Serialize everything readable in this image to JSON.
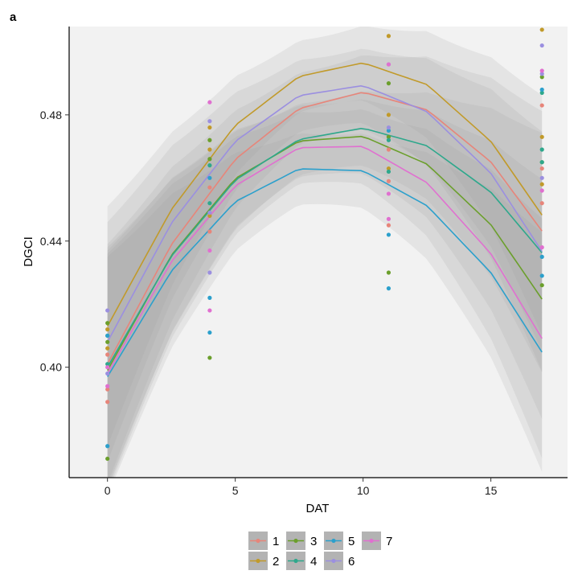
{
  "panel_tag": "a",
  "chart_data": {
    "type": "scatter",
    "xlabel": "DAT",
    "ylabel": "DGCI",
    "xlim": [
      -1.5,
      18.0
    ],
    "ylim": [
      0.365,
      0.508
    ],
    "x_ticks": [
      0,
      5,
      10,
      15
    ],
    "y_ticks": [
      0.4,
      0.44,
      0.48
    ],
    "y_tick_labels": [
      "0.40",
      "0.44",
      "0.48"
    ],
    "background": "#f2f2f2",
    "fits": "quadratic smooth with confidence band",
    "legend_position": "bottom",
    "series": [
      {
        "name": "1",
        "color": "#e7857a",
        "points": [
          [
            0,
            0.389
          ],
          [
            0,
            0.393
          ],
          [
            0,
            0.404
          ],
          [
            4,
            0.457
          ],
          [
            4,
            0.443
          ],
          [
            11,
            0.459
          ],
          [
            11,
            0.469
          ],
          [
            11,
            0.445
          ],
          [
            17,
            0.452
          ],
          [
            17,
            0.463
          ],
          [
            17,
            0.483
          ]
        ],
        "fit": [
          0.401,
          0.4389,
          0.4659,
          0.482,
          0.4872,
          0.4816,
          0.4651,
          0.4377
        ]
      },
      {
        "name": "2",
        "color": "#c19a2a",
        "points": [
          [
            0,
            0.406
          ],
          [
            0,
            0.412
          ],
          [
            4,
            0.469
          ],
          [
            4,
            0.476
          ],
          [
            4,
            0.448
          ],
          [
            11,
            0.505
          ],
          [
            11,
            0.48
          ],
          [
            11,
            0.463
          ],
          [
            17,
            0.507
          ],
          [
            17,
            0.473
          ],
          [
            17,
            0.458
          ]
        ],
        "fit": [
          0.413,
          0.45,
          0.4767,
          0.4922,
          0.4965,
          0.4896,
          0.4716,
          0.4424
        ]
      },
      {
        "name": "3",
        "color": "#6b9f2c",
        "points": [
          [
            0,
            0.371
          ],
          [
            0,
            0.414
          ],
          [
            0,
            0.408
          ],
          [
            4,
            0.403
          ],
          [
            4,
            0.466
          ],
          [
            4,
            0.472
          ],
          [
            11,
            0.43
          ],
          [
            11,
            0.49
          ],
          [
            11,
            0.473
          ],
          [
            17,
            0.426
          ],
          [
            17,
            0.465
          ],
          [
            17,
            0.492
          ]
        ],
        "fit": [
          0.399,
          0.4355,
          0.4598,
          0.4717,
          0.4732,
          0.4644,
          0.4452,
          0.4157
        ]
      },
      {
        "name": "4",
        "color": "#2ea88c",
        "points": [
          [
            0,
            0.401
          ],
          [
            0,
            0.41
          ],
          [
            4,
            0.452
          ],
          [
            4,
            0.464
          ],
          [
            11,
            0.472
          ],
          [
            11,
            0.462
          ],
          [
            17,
            0.465
          ],
          [
            17,
            0.469
          ],
          [
            17,
            0.487
          ]
        ],
        "fit": [
          0.4,
          0.4352,
          0.4593,
          0.4722,
          0.4758,
          0.4702,
          0.4555,
          0.4315
        ]
      },
      {
        "name": "5",
        "color": "#2ca0cc",
        "points": [
          [
            0,
            0.375
          ],
          [
            0,
            0.41
          ],
          [
            4,
            0.411
          ],
          [
            4,
            0.422
          ],
          [
            4,
            0.46
          ],
          [
            11,
            0.425
          ],
          [
            11,
            0.442
          ],
          [
            11,
            0.475
          ],
          [
            17,
            0.429
          ],
          [
            17,
            0.435
          ],
          [
            17,
            0.488
          ]
        ],
        "fit": [
          0.397,
          0.4305,
          0.4525,
          0.4629,
          0.4623,
          0.4512,
          0.43,
          0.3985
        ]
      },
      {
        "name": "6",
        "color": "#9b8fe0",
        "points": [
          [
            0,
            0.418
          ],
          [
            0,
            0.398
          ],
          [
            4,
            0.478
          ],
          [
            4,
            0.449
          ],
          [
            4,
            0.43
          ],
          [
            11,
            0.496
          ],
          [
            11,
            0.476
          ],
          [
            17,
            0.502
          ],
          [
            17,
            0.493
          ],
          [
            17,
            0.46
          ]
        ],
        "fit": [
          0.408,
          0.4457,
          0.4716,
          0.4861,
          0.4893,
          0.481,
          0.4615,
          0.4305
        ]
      },
      {
        "name": "7",
        "color": "#e070d0",
        "points": [
          [
            0,
            0.394
          ],
          [
            0,
            0.4
          ],
          [
            4,
            0.484
          ],
          [
            4,
            0.437
          ],
          [
            4,
            0.418
          ],
          [
            11,
            0.496
          ],
          [
            11,
            0.455
          ],
          [
            11,
            0.447
          ],
          [
            17,
            0.494
          ],
          [
            17,
            0.438
          ],
          [
            17,
            0.456
          ]
        ],
        "fit": [
          0.398,
          0.4335,
          0.4575,
          0.4696,
          0.47,
          0.4585,
          0.436,
          0.4024
        ]
      }
    ],
    "fit_x": [
      0,
      2.5,
      5,
      7.5,
      10,
      12.5,
      15,
      17.5
    ]
  },
  "legend": {
    "rows": [
      [
        "1",
        "3",
        "5",
        "7"
      ],
      [
        "2",
        "4",
        "6"
      ]
    ]
  }
}
